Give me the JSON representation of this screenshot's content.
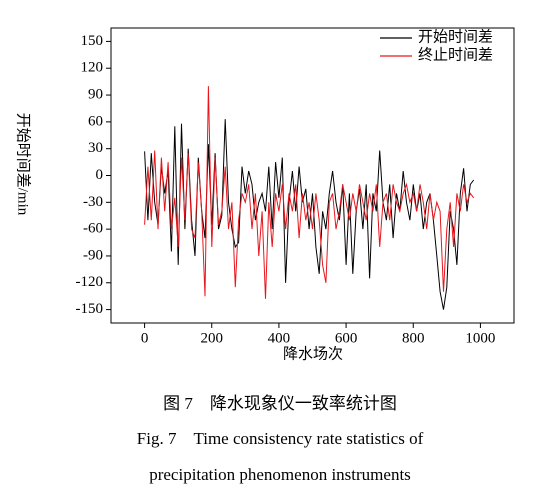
{
  "chart_data": {
    "type": "line",
    "y_label": "开始时间差/min",
    "x_label": "降水场次",
    "caption_cn": "图 7　降水现象仪一致率统计图",
    "caption_en_1": "Fig. 7　Time consistency rate statistics of",
    "caption_en_2": "precipitation phenomenon instruments",
    "legend_position": "upper right",
    "xlim": [
      -100,
      1100
    ],
    "xticks": [
      0,
      200,
      400,
      600,
      800,
      1000
    ],
    "ylim": [
      -165,
      165
    ],
    "yticks": [
      150,
      120,
      90,
      60,
      30,
      0,
      -30,
      -60,
      -90,
      -120,
      -150
    ],
    "x": [
      0,
      10,
      20,
      30,
      40,
      50,
      60,
      70,
      80,
      90,
      100,
      110,
      120,
      130,
      140,
      150,
      160,
      170,
      180,
      190,
      200,
      210,
      220,
      230,
      240,
      250,
      260,
      270,
      280,
      290,
      300,
      310,
      320,
      330,
      340,
      350,
      360,
      370,
      380,
      390,
      400,
      410,
      420,
      430,
      440,
      450,
      460,
      470,
      480,
      490,
      500,
      510,
      520,
      530,
      540,
      550,
      560,
      570,
      580,
      590,
      600,
      610,
      620,
      630,
      640,
      650,
      660,
      670,
      680,
      690,
      700,
      710,
      720,
      730,
      740,
      750,
      760,
      770,
      780,
      790,
      800,
      810,
      820,
      830,
      840,
      850,
      860,
      870,
      880,
      890,
      900,
      910,
      920,
      930,
      940,
      950,
      960,
      970,
      980
    ],
    "series": [
      {
        "name": "开始时间差",
        "color": "#000000",
        "values": [
          27,
          -50,
          25,
          -30,
          -55,
          10,
          -20,
          5,
          -85,
          55,
          -100,
          58,
          -60,
          30,
          -50,
          -90,
          20,
          -40,
          -70,
          35,
          -55,
          25,
          -60,
          -45,
          63,
          -30,
          -60,
          -80,
          -75,
          10,
          -20,
          5,
          -10,
          -50,
          -30,
          -20,
          -40,
          10,
          -60,
          15,
          -25,
          20,
          -120,
          -30,
          5,
          -40,
          10,
          -30,
          -15,
          -60,
          -20,
          -80,
          -110,
          -40,
          -60,
          -20,
          5,
          -30,
          -50,
          -10,
          -100,
          -20,
          -110,
          -40,
          -15,
          -60,
          -10,
          -115,
          -20,
          -40,
          28,
          -30,
          -50,
          -10,
          -70,
          -20,
          -40,
          5,
          -30,
          -50,
          -10,
          -40,
          -20,
          -60,
          -30,
          -20,
          -50,
          -90,
          -130,
          -150,
          -125,
          -40,
          -60,
          -100,
          -20,
          8,
          -40,
          -10,
          -5
        ]
      },
      {
        "name": "终止时间差",
        "color": "#e8161c",
        "values": [
          -55,
          10,
          -50,
          28,
          -60,
          20,
          -40,
          15,
          -60,
          -25,
          -80,
          20,
          -50,
          25,
          -60,
          -70,
          15,
          -40,
          -135,
          100,
          -80,
          20,
          -55,
          -40,
          10,
          -60,
          -30,
          -125,
          -50,
          -20,
          -30,
          -10,
          -60,
          -20,
          -90,
          -40,
          -138,
          -30,
          -80,
          -20,
          -40,
          -10,
          -60,
          -20,
          -40,
          -10,
          -70,
          -20,
          -50,
          -30,
          -60,
          -20,
          -50,
          -100,
          -120,
          -30,
          -20,
          -60,
          -40,
          -10,
          -30,
          -50,
          -20,
          -40,
          -10,
          -30,
          -50,
          -20,
          -40,
          -10,
          -80,
          -30,
          -20,
          -50,
          -10,
          -30,
          -40,
          -20,
          -10,
          -30,
          -20,
          -40,
          -10,
          -30,
          -60,
          -20,
          -50,
          -30,
          -40,
          -130,
          -60,
          -30,
          -80,
          -20,
          -40,
          -10,
          -30,
          -20,
          -25
        ]
      }
    ]
  }
}
